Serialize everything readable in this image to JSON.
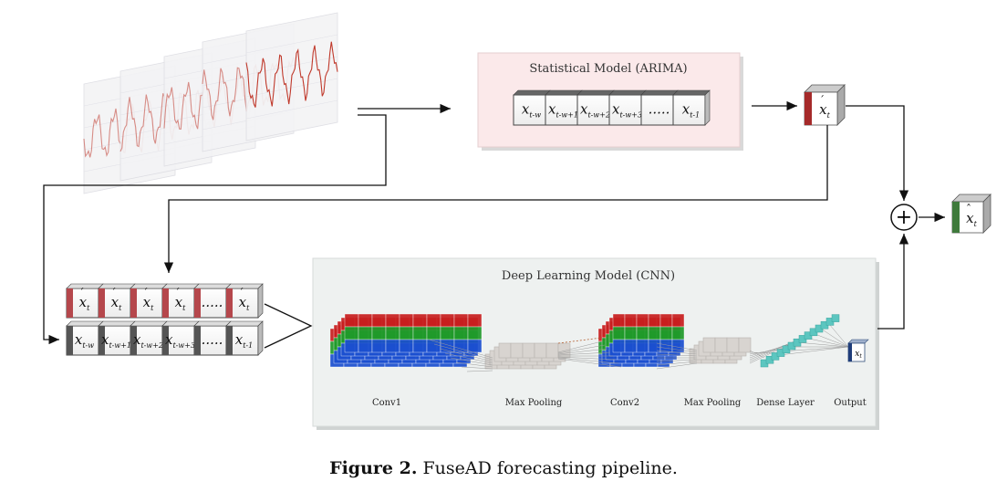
{
  "statistical_model": {
    "title": "Statistical Model (ARIMA)",
    "window_cells": [
      {
        "base": "x",
        "sub": "t-w"
      },
      {
        "base": "x",
        "sub": "t-w+1"
      },
      {
        "base": "x",
        "sub": "t-w+2"
      },
      {
        "base": "x",
        "sub": "t-w+3"
      },
      {
        "base": ".....",
        "sub": ""
      },
      {
        "base": "x",
        "sub": "t-1"
      }
    ]
  },
  "arima_output": {
    "base": "x",
    "sub": "t",
    "accent": "ˊ"
  },
  "final_output": {
    "base": "x",
    "sub": "t",
    "accent": "ˆ"
  },
  "fusion_symbol": "+",
  "cnn_input": {
    "forecast_row": [
      {
        "base": "x",
        "sub": "t"
      },
      {
        "base": "x",
        "sub": "t"
      },
      {
        "base": "x",
        "sub": "t"
      },
      {
        "base": "x",
        "sub": "t"
      },
      {
        "base": ".....",
        "sub": ""
      },
      {
        "base": "x",
        "sub": "t"
      }
    ],
    "window_row": [
      {
        "base": "x",
        "sub": "t-w"
      },
      {
        "base": "x",
        "sub": "t-w+1"
      },
      {
        "base": "x",
        "sub": "t-w+2"
      },
      {
        "base": "x",
        "sub": "t-w+3"
      },
      {
        "base": ".....",
        "sub": ""
      },
      {
        "base": "x",
        "sub": "t-1"
      }
    ]
  },
  "deep_learning_model": {
    "title": "Deep Learning Model (CNN)",
    "layers": [
      "Conv1",
      "Max Pooling",
      "Conv2",
      "Max Pooling",
      "Dense Layer",
      "Output"
    ],
    "output_cell": {
      "base": "x",
      "sub": "t"
    }
  },
  "caption": {
    "label": "Figure 2.",
    "text": "FuseAD forecasting pipeline."
  },
  "colors": {
    "red_face": "#a52a2a",
    "green_face": "#3f7a3c",
    "blue_face": "#1f3d7a",
    "arima_bg": "#fbe9ea",
    "cnn_bg": "#eef1f0",
    "series": "#c0392b"
  }
}
